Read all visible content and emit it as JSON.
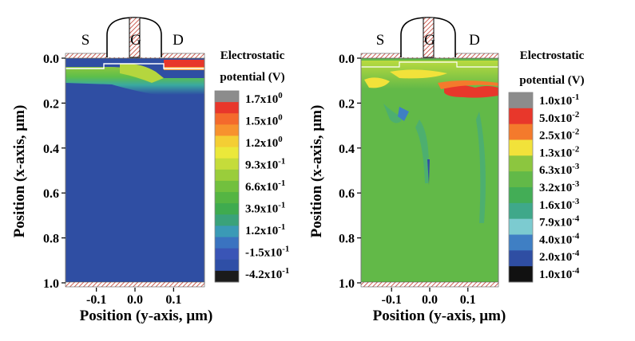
{
  "chart_data": [
    {
      "type": "heatmap",
      "title": "",
      "xlabel": "Position (y-axis, µm)",
      "ylabel": "Position (x-axis, µm)",
      "x_ticks": [
        "-0.1",
        "0.0",
        "0.1"
      ],
      "x_tick_values": [
        -0.1,
        0.0,
        0.1
      ],
      "y_ticks": [
        "0.0",
        "0.2",
        "0.4",
        "0.6",
        "0.8",
        "1.0"
      ],
      "y_tick_values": [
        0.0,
        0.2,
        0.4,
        0.6,
        0.8,
        1.0
      ],
      "xlim": [
        -0.18,
        0.18
      ],
      "ylim": [
        0.0,
        1.0
      ],
      "y_inverted": true,
      "device_labels": [
        "S",
        "G",
        "D"
      ],
      "colorbar": {
        "title_line1": "Electrostatic",
        "title_line2": "potential (V)",
        "labels": [
          "1.7x10^0",
          "1.5x10^0",
          "1.2x10^0",
          "9.3x10^-1",
          "6.6x10^-1",
          "3.9x10^-1",
          "1.2x10^-1",
          "-1.5x10^-1",
          "-4.2x10^-1"
        ],
        "colors": [
          "#8c8c8c",
          "#e8372b",
          "#f46a2c",
          "#f7922e",
          "#f4ce34",
          "#ebe83a",
          "#c5dc3a",
          "#9acd3b",
          "#72c03e",
          "#55b543",
          "#3fab4f",
          "#3aa27a",
          "#3a9ab6",
          "#3a73c0",
          "#3a55b6",
          "#2f4fa6",
          "#1b1b1b"
        ]
      },
      "regions": {
        "channel_top": "#2f4ea3",
        "bulk": "#2f4ea3",
        "surface_band": "#62c34a",
        "drain_hot_spot": "#e8372b"
      }
    },
    {
      "type": "heatmap",
      "title": "",
      "xlabel": "Position (y-axis, µm)",
      "ylabel": "Position (x-axis, µm)",
      "x_ticks": [
        "-0.1",
        "0.0",
        "0.1"
      ],
      "x_tick_values": [
        -0.1,
        0.0,
        0.1
      ],
      "y_ticks": [
        "0.0",
        "0.2",
        "0.4",
        "0.6",
        "0.8",
        "1.0"
      ],
      "y_tick_values": [
        0.0,
        0.2,
        0.4,
        0.6,
        0.8,
        1.0
      ],
      "xlim": [
        -0.18,
        0.18
      ],
      "ylim": [
        0.0,
        1.0
      ],
      "y_inverted": true,
      "device_labels": [
        "S",
        "G",
        "D"
      ],
      "colorbar": {
        "title_line1": "Electrostatic",
        "title_line2": "potential (V)",
        "labels": [
          "1.0x10^-1",
          "5.0x10^-2",
          "2.5x10^-2",
          "1.3x10^-2",
          "6.3x10^-3",
          "3.2x10^-3",
          "1.6x10^-3",
          "7.9x10^-4",
          "4.0x10^-4",
          "2.0x10^-4",
          "1.0x10^-4"
        ],
        "colors": [
          "#8c8c8c",
          "#e8372b",
          "#f47a2c",
          "#f2e23a",
          "#8cc63f",
          "#62b948",
          "#43ad56",
          "#3fa88a",
          "#7ccbd0",
          "#3f7fc4",
          "#2f4ea3",
          "#111111"
        ]
      },
      "regions": {
        "bulk": "#62b948",
        "surface_band": "#c6df3f",
        "drain_hot_spot": "#e8372b"
      }
    }
  ]
}
